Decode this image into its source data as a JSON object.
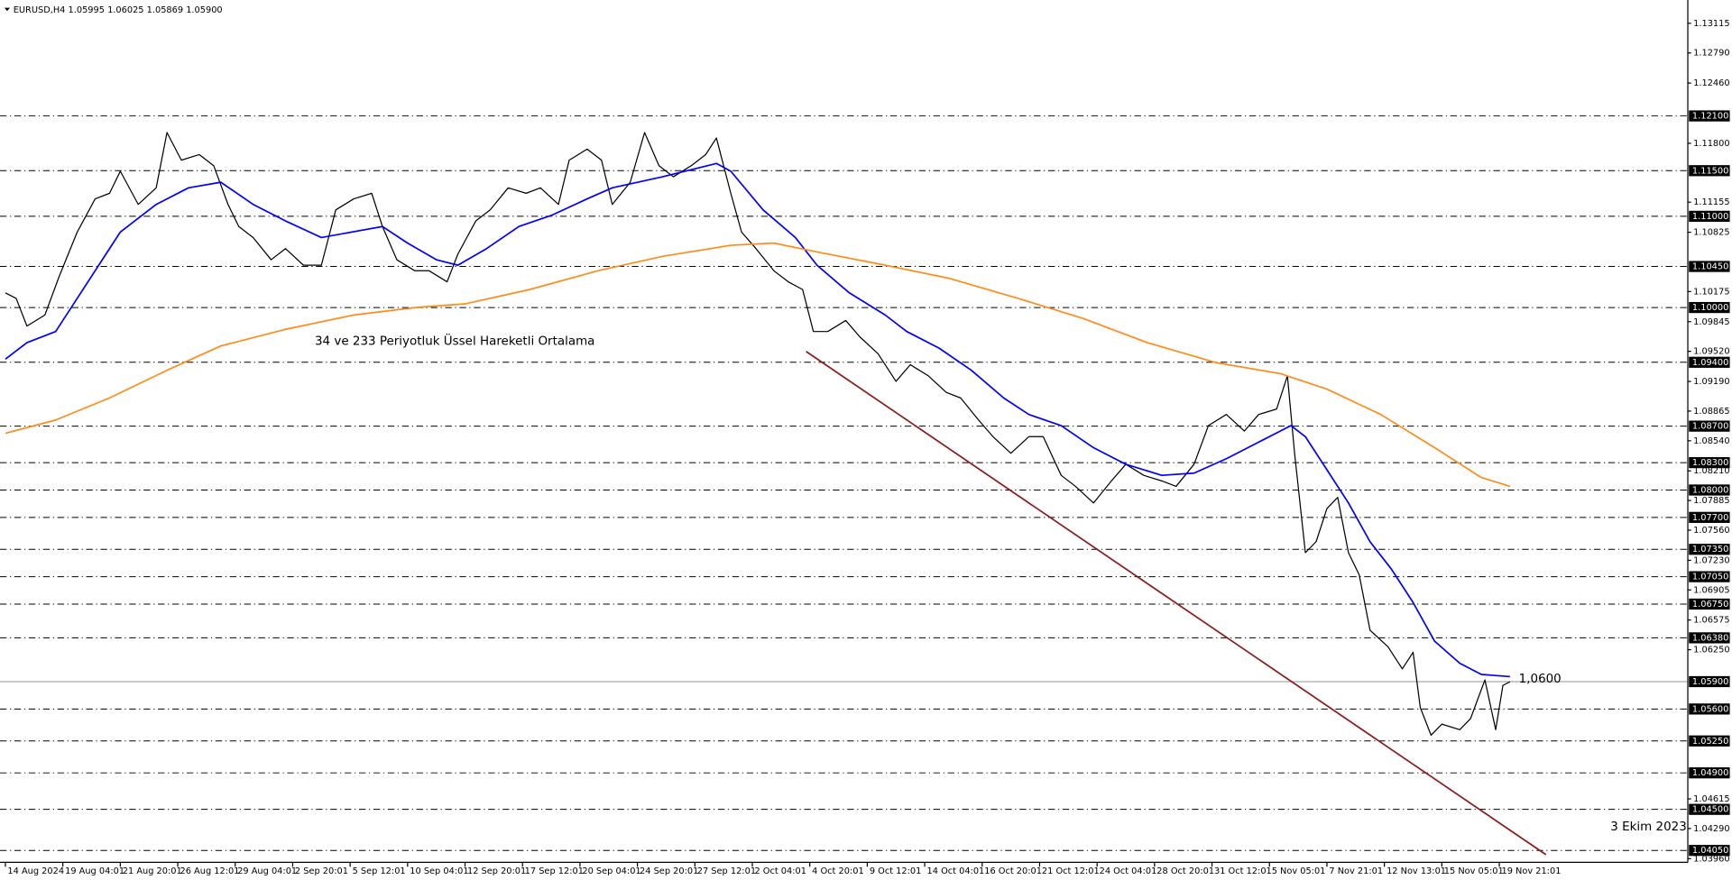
{
  "chart_data": {
    "type": "line",
    "title": "EURUSD,H4  1.05995 1.06025 1.05869 1.05900",
    "annotations": [
      "34 ve 233 Periyotluk Üssel Hareketli Ortalama",
      "1,0600",
      "3 Ekim 2023"
    ],
    "xlim": [
      -1.5,
      468.5
    ],
    "ylim": [
      1.0392,
      1.1337
    ],
    "xticks": [
      {
        "value": 0,
        "label": "14 Aug 2024"
      },
      {
        "value": 16,
        "label": "19 Aug 04:01"
      },
      {
        "value": 32,
        "label": "21 Aug 20:01"
      },
      {
        "value": 48,
        "label": "26 Aug 12:01"
      },
      {
        "value": 64,
        "label": "29 Aug 04:01"
      },
      {
        "value": 80,
        "label": "2 Sep 20:01"
      },
      {
        "value": 96,
        "label": "5 Sep 12:01"
      },
      {
        "value": 112,
        "label": "10 Sep 04:01"
      },
      {
        "value": 128,
        "label": "12 Sep 20:01"
      },
      {
        "value": 144,
        "label": "17 Sep 12:01"
      },
      {
        "value": 160,
        "label": "20 Sep 04:01"
      },
      {
        "value": 176,
        "label": "24 Sep 20:01"
      },
      {
        "value": 192,
        "label": "27 Sep 12:01"
      },
      {
        "value": 208,
        "label": "2 Oct 04:01"
      },
      {
        "value": 224,
        "label": "4 Oct 20:01"
      },
      {
        "value": 240,
        "label": "9 Oct 12:01"
      },
      {
        "value": 256,
        "label": "14 Oct 04:01"
      },
      {
        "value": 272,
        "label": "16 Oct 20:01"
      },
      {
        "value": 288,
        "label": "21 Oct 12:01"
      },
      {
        "value": 304,
        "label": "24 Oct 04:01"
      },
      {
        "value": 320,
        "label": "28 Oct 20:01"
      },
      {
        "value": 336,
        "label": "31 Oct 12:01"
      },
      {
        "value": 352,
        "label": "5 Nov 05:01"
      },
      {
        "value": 368,
        "label": "7 Nov 21:01"
      },
      {
        "value": 384,
        "label": "12 Nov 13:01"
      },
      {
        "value": 400,
        "label": "15 Nov 05:01"
      },
      {
        "value": 416,
        "label": "19 Nov 21:01"
      }
    ],
    "yticks": [
      1.13115,
      {
        "value": 1.1279,
        "label": "1.12790"
      },
      {
        "value": 1.1246,
        "label": "1.12460"
      },
      {
        "value": 1.118,
        "label": "1.11800"
      },
      1.11155,
      1.10825,
      1.10175,
      1.09845,
      {
        "value": 1.0952,
        "label": "1.09520"
      },
      {
        "value": 1.0919,
        "label": "1.09190"
      },
      1.08865,
      {
        "value": 1.0854,
        "label": "1.08540"
      },
      {
        "value": 1.0821,
        "label": "1.08210"
      },
      1.07885,
      {
        "value": 1.0756,
        "label": "1.07560"
      },
      {
        "value": 1.0723,
        "label": "1.07230"
      },
      1.06905,
      1.06575,
      {
        "value": 1.0625,
        "label": "1.06250"
      },
      1.04615,
      {
        "value": 1.0429,
        "label": "1.04290"
      },
      {
        "value": 1.0396,
        "label": "1.03960"
      }
    ],
    "levels": [
      {
        "value": 1.121,
        "label": "1.12100"
      },
      {
        "value": 1.115,
        "label": "1.11500"
      },
      {
        "value": 1.11,
        "label": "1.11000"
      },
      {
        "value": 1.1045,
        "label": "1.10450"
      },
      {
        "value": 1.1,
        "label": "1.10000"
      },
      {
        "value": 1.094,
        "label": "1.09400"
      },
      {
        "value": 1.087,
        "label": "1.08700"
      },
      {
        "value": 1.083,
        "label": "1.08300"
      },
      {
        "value": 1.08,
        "label": "1.08000"
      },
      {
        "value": 1.077,
        "label": "1.07700"
      },
      {
        "value": 1.0735,
        "label": "1.07350"
      },
      {
        "value": 1.0705,
        "label": "1.07050"
      },
      {
        "value": 1.0675,
        "label": "1.06750"
      },
      {
        "value": 1.0638,
        "label": "1.06380"
      },
      {
        "value": 1.056,
        "label": "1.05600"
      },
      {
        "value": 1.0525,
        "label": "1.05250"
      },
      {
        "value": 1.049,
        "label": "1.04900"
      },
      {
        "value": 1.045,
        "label": "1.04500"
      },
      {
        "value": 1.0405,
        "label": "1.04050"
      }
    ],
    "current_price": {
      "value": 1.059,
      "label": "1.05900"
    },
    "series": [
      {
        "color": "#000000",
        "x": [
          0,
          3,
          6,
          11,
          15,
          20,
          25,
          29,
          32,
          37,
          42,
          45,
          49,
          54,
          58,
          62,
          65,
          69,
          74,
          78,
          83,
          88,
          92,
          97,
          102,
          105,
          109,
          114,
          118,
          123,
          126,
          131,
          135,
          140,
          145,
          149,
          154,
          157,
          162,
          166,
          169,
          174,
          178,
          182,
          186,
          191,
          195,
          198,
          202,
          205,
          209,
          214,
          218,
          222,
          225,
          229,
          234,
          238,
          243,
          248,
          252,
          257,
          262,
          266,
          271,
          275,
          280,
          285,
          289,
          294,
          298,
          303,
          308,
          312,
          317,
          322,
          326,
          331,
          335,
          340,
          345,
          349,
          354,
          357,
          359,
          362,
          365,
          368,
          371,
          374,
          377,
          380,
          385,
          389,
          392,
          394,
          397,
          400,
          405,
          408,
          412,
          415,
          417,
          419
        ],
        "values": [
          1.10161,
          1.101,
          1.09797,
          1.09918,
          1.10343,
          1.10827,
          1.11191,
          1.11252,
          1.11494,
          1.1113,
          1.11312,
          1.11918,
          1.11615,
          1.11676,
          1.11555,
          1.1113,
          1.10888,
          1.10767,
          1.10524,
          1.10646,
          1.10464,
          1.10464,
          1.1107,
          1.11191,
          1.11252,
          1.10888,
          1.10524,
          1.10403,
          1.10403,
          1.10282,
          1.10585,
          1.10949,
          1.1107,
          1.11312,
          1.11252,
          1.11312,
          1.1113,
          1.11615,
          1.11736,
          1.11615,
          1.1113,
          1.11373,
          1.11918,
          1.11555,
          1.11433,
          1.11555,
          1.11676,
          1.11858,
          1.11252,
          1.10827,
          1.10646,
          1.10403,
          1.10282,
          1.10197,
          1.09737,
          1.09737,
          1.09858,
          1.09676,
          1.09494,
          1.09191,
          1.09373,
          1.09252,
          1.0907,
          1.09009,
          1.08767,
          1.08585,
          1.08403,
          1.08585,
          1.08585,
          1.08161,
          1.0804,
          1.07858,
          1.081,
          1.08282,
          1.08161,
          1.081,
          1.0804,
          1.08282,
          1.08706,
          1.08828,
          1.08646,
          1.08828,
          1.08888,
          1.09252,
          1.08403,
          1.07313,
          1.07434,
          1.07797,
          1.07919,
          1.07313,
          1.0707,
          1.06464,
          1.06282,
          1.0604,
          1.06222,
          1.05616,
          1.05313,
          1.05434,
          1.05373,
          1.05495,
          1.05919,
          1.05373,
          1.05858,
          1.059
        ]
      },
      {
        "color": "#0000ff",
        "x": [
          0,
          6,
          14,
          20,
          26,
          32,
          42,
          51,
          60,
          69,
          78,
          88,
          105,
          112,
          120,
          126,
          134,
          143,
          152,
          162,
          169,
          183,
          198,
          202,
          211,
          220,
          226,
          235,
          245,
          251,
          260,
          269,
          278,
          285,
          294,
          303,
          312,
          322,
          331,
          340,
          349,
          358,
          362,
          368,
          374,
          380,
          386,
          392,
          398,
          405,
          411,
          419
        ],
        "values": [
          1.09434,
          1.09615,
          1.09737,
          1.101,
          1.10464,
          1.10827,
          1.1113,
          1.11312,
          1.11373,
          1.1113,
          1.10949,
          1.10767,
          1.10888,
          1.10706,
          1.10524,
          1.10464,
          1.10646,
          1.10888,
          1.11009,
          1.11191,
          1.11312,
          1.11433,
          1.11579,
          1.11494,
          1.1107,
          1.10767,
          1.10464,
          1.10161,
          1.09918,
          1.09737,
          1.09555,
          1.09312,
          1.09009,
          1.08828,
          1.08706,
          1.08464,
          1.08282,
          1.08161,
          1.08185,
          1.08343,
          1.08525,
          1.08706,
          1.08585,
          1.08222,
          1.07858,
          1.07434,
          1.07131,
          1.06767,
          1.06343,
          1.06101,
          1.05979,
          1.05955
        ]
      },
      {
        "color": "#ff8c1a",
        "x": [
          0,
          14,
          29,
          45,
          60,
          78,
          97,
          115,
          128,
          146,
          165,
          183,
          202,
          214,
          226,
          245,
          263,
          282,
          300,
          318,
          337,
          355,
          368,
          383,
          398,
          411,
          419
        ],
        "values": [
          1.08622,
          1.08767,
          1.09009,
          1.09312,
          1.09579,
          1.09761,
          1.09918,
          1.10003,
          1.1004,
          1.10197,
          1.10403,
          1.10561,
          1.10682,
          1.10706,
          1.10609,
          1.10464,
          1.10318,
          1.101,
          1.09882,
          1.09615,
          1.09397,
          1.09276,
          1.09106,
          1.08828,
          1.08464,
          1.08137,
          1.0804
        ]
      },
      {
        "color": "#8b1a1a",
        "x": [
          223,
          429
        ],
        "values": [
          1.09518,
          1.04004
        ]
      }
    ]
  }
}
